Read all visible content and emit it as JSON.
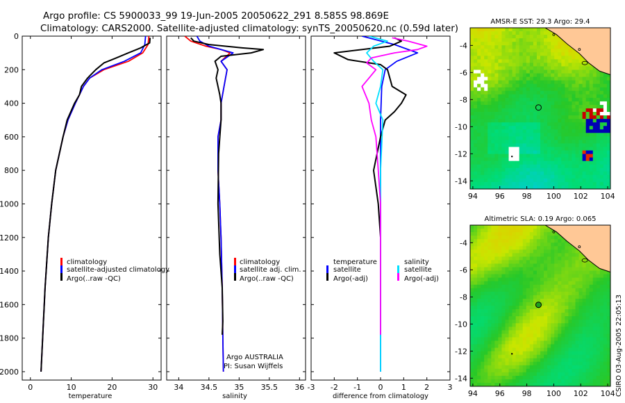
{
  "header": {
    "line1": "Argo profile: CS 5900033_99 19-Jun-2005 20050622_291 8.585S 98.869E",
    "line2": "Climatology: CARS2000. Satellite-adjusted climatology: synTS_20050620.nc (0.59d later)"
  },
  "colors": {
    "climatology": "#ff0000",
    "satellite": "#0000ff",
    "argo": "#000000",
    "sat_temp": "#0000ff",
    "sat_sal_diff": "#00e0ff",
    "argo_sal_diff": "#ff00ff"
  },
  "chart_data": [
    {
      "type": "line",
      "name": "temperature-profile",
      "xlabel": "temperature",
      "ylabel": "",
      "xlim": [
        -2,
        32
      ],
      "ylim": [
        2050,
        0
      ],
      "xticks": [
        0,
        10,
        20,
        30
      ],
      "yticks": [
        0,
        200,
        400,
        600,
        800,
        1000,
        1200,
        1400,
        1600,
        1800,
        2000
      ],
      "legend": [
        "climatology",
        "satellite-adjusted climatology",
        "Argo(..raw -QC)"
      ],
      "series": [
        {
          "name": "climatology",
          "color": "#ff0000",
          "depth": [
            0,
            50,
            100,
            150,
            200,
            250,
            300,
            400,
            500,
            600,
            800,
            1000,
            1200,
            1500,
            1800,
            2000
          ],
          "values": [
            29.0,
            28.8,
            27.5,
            24.0,
            18.0,
            14.5,
            13.0,
            11.0,
            9.2,
            8.0,
            6.2,
            5.2,
            4.4,
            3.6,
            3.0,
            2.6
          ]
        },
        {
          "name": "satellite-adjusted climatology",
          "color": "#0000ff",
          "depth": [
            0,
            50,
            100,
            150,
            200,
            250,
            300,
            400,
            500,
            600,
            800,
            1000,
            1200,
            1500,
            1800,
            2000
          ],
          "values": [
            28.2,
            28.0,
            27.0,
            23.0,
            17.5,
            14.5,
            13.0,
            11.0,
            9.2,
            8.0,
            6.2,
            5.2,
            4.4,
            3.6,
            3.0,
            2.6
          ]
        },
        {
          "name": "Argo(..raw -QC)",
          "color": "#000000",
          "depth": [
            10,
            40,
            70,
            100,
            130,
            160,
            200,
            250,
            300,
            350,
            400,
            500,
            600,
            800,
            1000,
            1200,
            1500,
            1800,
            2000
          ],
          "values": [
            29.3,
            29.2,
            27.0,
            24.0,
            21.0,
            18.0,
            16.0,
            14.0,
            12.5,
            12.0,
            10.8,
            9.0,
            8.0,
            6.2,
            5.2,
            4.4,
            3.6,
            3.0,
            2.6
          ]
        }
      ]
    },
    {
      "type": "line",
      "name": "salinity-profile",
      "xlabel": "salinity",
      "ylabel": "",
      "xlim": [
        33.8,
        36.1
      ],
      "ylim": [
        2050,
        0
      ],
      "xticks": [
        34,
        34.5,
        35,
        35.5,
        36
      ],
      "xtick_labels": [
        "34",
        "34.5",
        "35",
        "35.5",
        "36"
      ],
      "legend": [
        "climatology",
        "satellite adj. clim.",
        "Argo(..raw -QC)"
      ],
      "annotation": [
        "Argo AUSTRALIA",
        "PI: Susan Wijffels"
      ],
      "series": [
        {
          "name": "climatology",
          "color": "#ff0000",
          "depth": [
            0,
            30,
            60,
            80,
            100,
            150,
            200,
            300,
            400,
            500,
            600,
            800,
            1000,
            1200,
            1500,
            1800,
            2000
          ],
          "values": [
            34.1,
            34.2,
            34.45,
            34.7,
            34.85,
            34.7,
            34.8,
            34.75,
            34.7,
            34.7,
            34.65,
            34.65,
            34.68,
            34.7,
            34.72,
            34.73,
            34.74
          ]
        },
        {
          "name": "satellite adj. clim.",
          "color": "#0000ff",
          "depth": [
            0,
            30,
            60,
            80,
            100,
            150,
            200,
            300,
            400,
            500,
            600,
            800,
            1000,
            1200,
            1500,
            1800,
            2000
          ],
          "values": [
            34.3,
            34.35,
            34.5,
            34.7,
            34.9,
            34.7,
            34.8,
            34.75,
            34.7,
            34.7,
            34.65,
            34.65,
            34.68,
            34.7,
            34.72,
            34.73,
            34.74
          ]
        },
        {
          "name": "Argo(..raw -QC)",
          "color": "#000000",
          "depth": [
            10,
            30,
            50,
            70,
            80,
            100,
            120,
            150,
            200,
            250,
            300,
            350,
            400,
            500,
            700,
            1000,
            1300,
            1500,
            1700,
            1780
          ],
          "values": [
            34.2,
            34.25,
            34.5,
            35.05,
            35.4,
            35.2,
            34.7,
            34.6,
            34.65,
            34.62,
            34.65,
            34.68,
            34.7,
            34.7,
            34.66,
            34.65,
            34.68,
            34.72,
            34.73,
            34.72
          ]
        }
      ]
    },
    {
      "type": "line",
      "name": "difference-profile",
      "xlabel": "difference from climatology",
      "ylabel": "",
      "xlim": [
        -3,
        3
      ],
      "ylim": [
        2050,
        0
      ],
      "xticks": [
        -3,
        -2,
        -1,
        0,
        1,
        2,
        3
      ],
      "legend_temperature": [
        "temperature",
        "satellite",
        "Argo(-adj)"
      ],
      "legend_salinity": [
        "salinity",
        "satellite",
        "Argo(-adj)"
      ],
      "series": [
        {
          "name": "temperature satellite",
          "color": "#0000ff",
          "depth": [
            0,
            50,
            100,
            150,
            200,
            300,
            500,
            800,
            1000,
            1500,
            2000
          ],
          "values": [
            -0.8,
            0.6,
            1.6,
            0.7,
            0.2,
            0.05,
            0.0,
            0.0,
            0.0,
            0.0,
            0.0
          ]
        },
        {
          "name": "temperature Argo(-adj)",
          "color": "#000000",
          "depth": [
            10,
            30,
            60,
            100,
            140,
            170,
            200,
            300,
            350,
            400,
            450,
            500,
            600,
            800,
            1000,
            1200,
            1500,
            1780
          ],
          "values": [
            0.6,
            0.9,
            0.4,
            -2.0,
            -1.4,
            0.0,
            0.3,
            0.5,
            1.1,
            0.9,
            0.6,
            0.2,
            0.0,
            -0.3,
            -0.1,
            0.0,
            0.0,
            0.0
          ]
        },
        {
          "name": "salinity satellite",
          "color": "#00e0ff",
          "depth": [
            0,
            30,
            60,
            100,
            150,
            200,
            300,
            400,
            500,
            800,
            1000,
            1500,
            2000
          ],
          "values": [
            -0.5,
            0.3,
            -0.3,
            -0.6,
            -0.3,
            0.1,
            0.0,
            -0.2,
            0.1,
            0.0,
            0.0,
            0.0,
            0.0
          ]
        },
        {
          "name": "salinity Argo(-adj)",
          "color": "#ff00ff",
          "depth": [
            10,
            30,
            60,
            80,
            100,
            130,
            160,
            200,
            300,
            400,
            500,
            600,
            800,
            1000,
            1300,
            1500,
            1780
          ],
          "values": [
            0.5,
            1.2,
            2.0,
            1.6,
            0.6,
            -0.4,
            -0.6,
            -0.2,
            -0.8,
            -0.5,
            -0.4,
            -0.2,
            -0.1,
            0.0,
            0.0,
            0.0,
            0.0
          ]
        }
      ]
    },
    {
      "type": "heatmap",
      "name": "sst-map",
      "title": "AMSR-E SST: 29.3 Argo: 29.4",
      "xlim": [
        93.8,
        104.2
      ],
      "ylim": [
        -14.6,
        -2.7
      ],
      "xticks": [
        94,
        96,
        98,
        100,
        102,
        104
      ],
      "yticks": [
        -4,
        -6,
        -8,
        -10,
        -12,
        -14
      ],
      "marker": {
        "lon": 98.869,
        "lat": -8.585
      }
    },
    {
      "type": "heatmap",
      "name": "sla-map",
      "title": "Altimetric SLA: 0.19 Argo: 0.065",
      "xlim": [
        93.8,
        104.2
      ],
      "ylim": [
        -14.6,
        -2.7
      ],
      "xticks": [
        94,
        96,
        98,
        100,
        102,
        104
      ],
      "yticks": [
        -4,
        -6,
        -8,
        -10,
        -12,
        -14
      ],
      "marker": {
        "lon": 98.869,
        "lat": -8.585
      }
    }
  ],
  "credit": "CSIRO 03-Aug-2005 22:05:13"
}
